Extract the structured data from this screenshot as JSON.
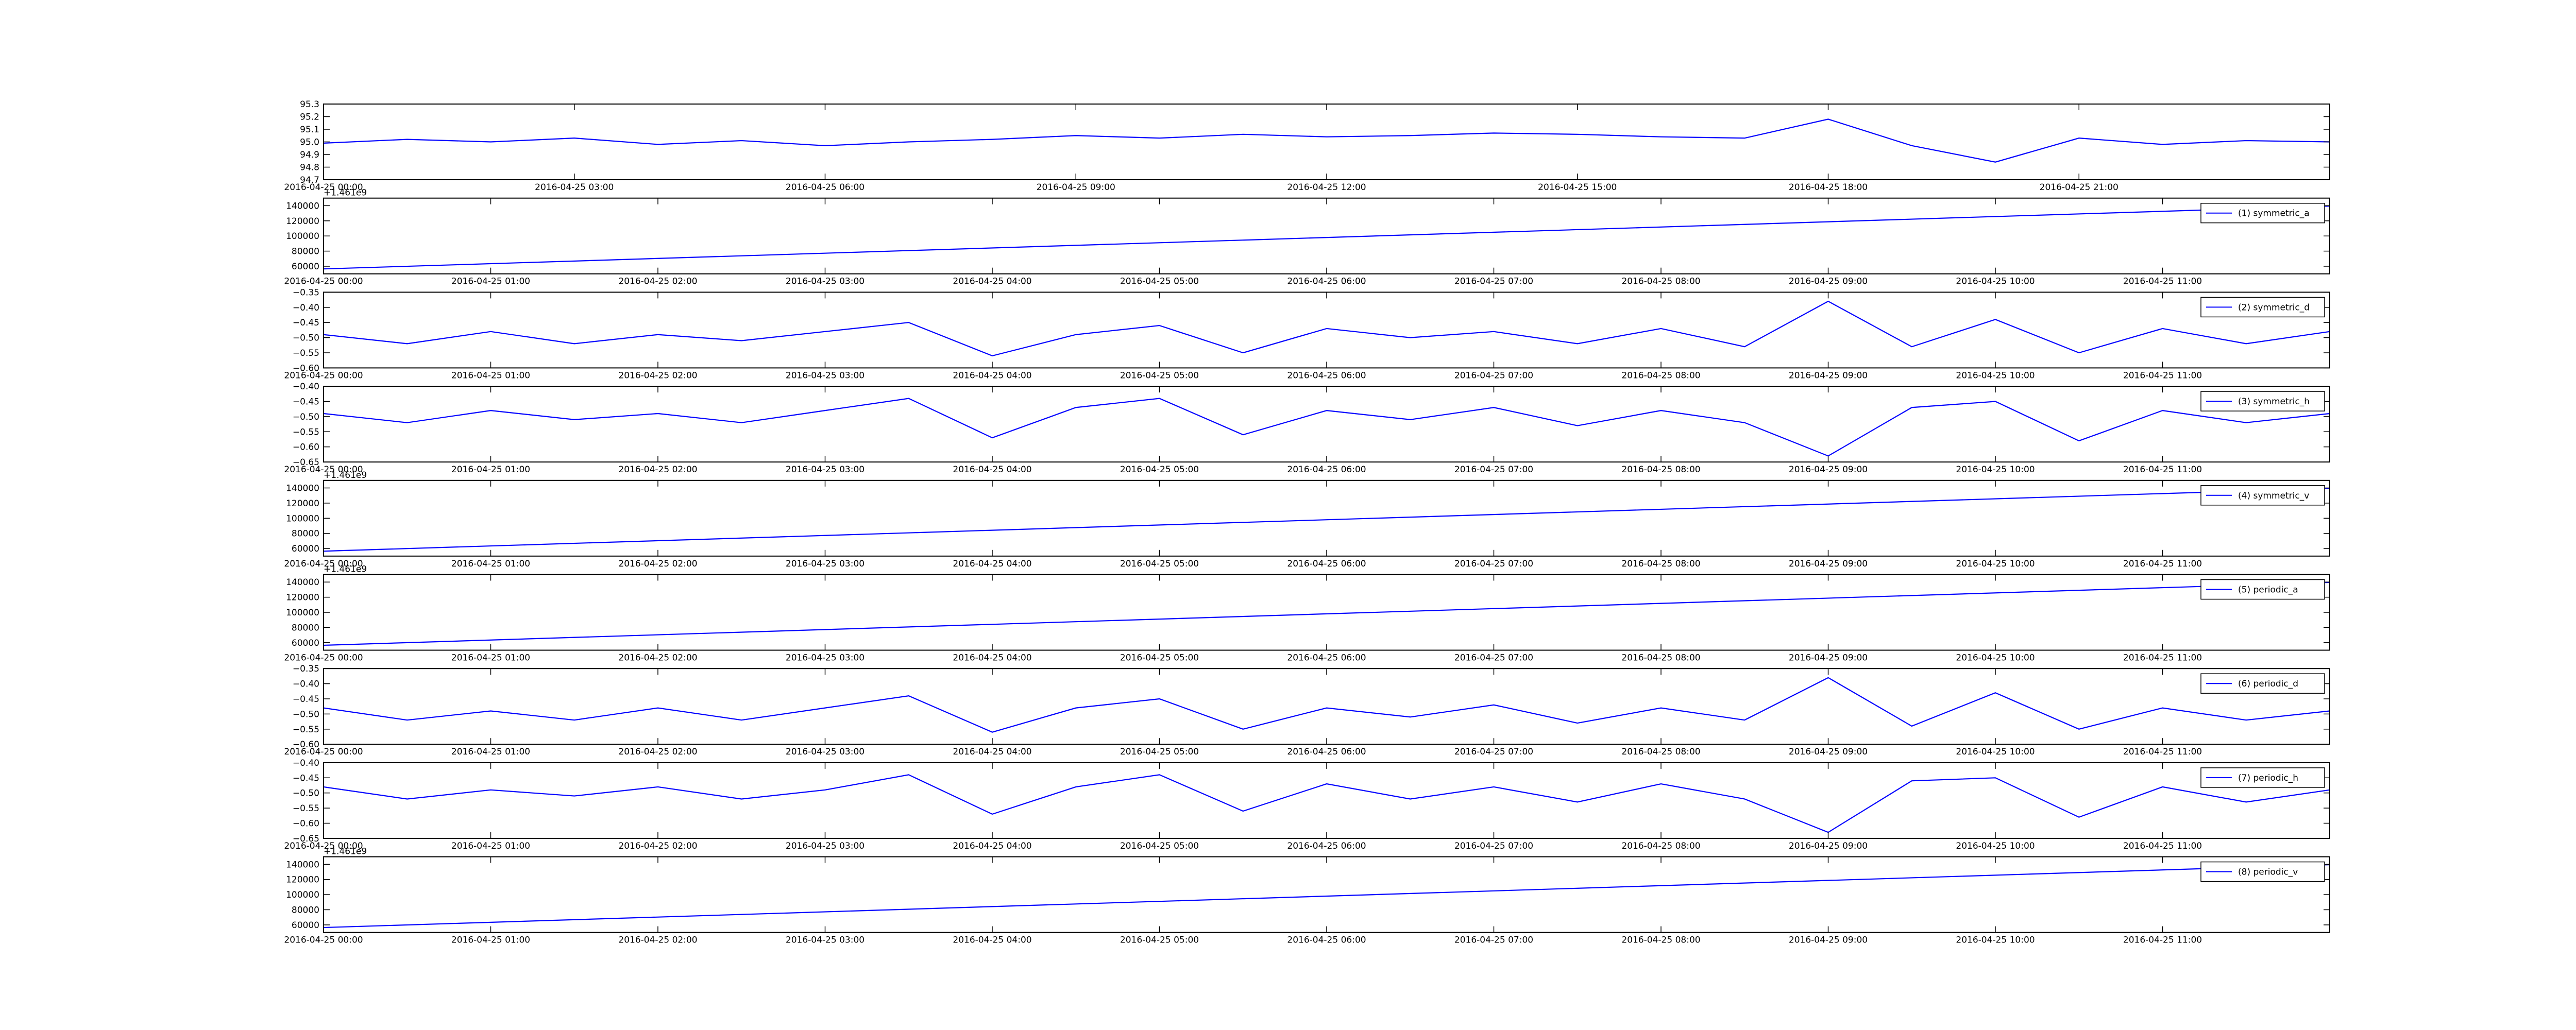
{
  "chart_data": [
    {
      "type": "line",
      "x": [
        "2016-04-25 00:00",
        "2016-04-25 01:00",
        "2016-04-25 02:00",
        "2016-04-25 03:00",
        "2016-04-25 04:00",
        "2016-04-25 05:00",
        "2016-04-25 06:00",
        "2016-04-25 07:00",
        "2016-04-25 08:00",
        "2016-04-25 09:00",
        "2016-04-25 10:00",
        "2016-04-25 11:00",
        "2016-04-25 12:00",
        "2016-04-25 13:00",
        "2016-04-25 14:00",
        "2016-04-25 15:00",
        "2016-04-25 16:00",
        "2016-04-25 17:00",
        "2016-04-25 18:00",
        "2016-04-25 19:00",
        "2016-04-25 20:00",
        "2016-04-25 21:00",
        "2016-04-25 22:00",
        "2016-04-25 23:00",
        "2016-04-26 00:00"
      ],
      "series": [
        {
          "color": "#0000ff",
          "values": [
            94.99,
            95.02,
            95.0,
            95.03,
            94.98,
            95.01,
            94.97,
            95.0,
            95.02,
            95.05,
            95.03,
            95.06,
            95.04,
            95.05,
            95.07,
            95.06,
            95.04,
            95.03,
            95.18,
            94.97,
            94.84,
            95.03,
            94.98,
            95.01,
            95.0
          ]
        }
      ],
      "xlim": [
        "2016-04-25 00:00",
        "2016-04-26 00:00"
      ],
      "xticks": [
        "2016-04-25 00:00",
        "2016-04-25 03:00",
        "2016-04-25 06:00",
        "2016-04-25 09:00",
        "2016-04-25 12:00",
        "2016-04-25 15:00",
        "2016-04-25 18:00",
        "2016-04-25 21:00"
      ],
      "ylim": [
        94.7,
        95.3
      ],
      "yticks": [
        94.7,
        94.8,
        94.9,
        {
          "value": 95.0,
          "label": "95.0"
        },
        95.1,
        95.2,
        95.3
      ]
    },
    {
      "type": "line",
      "offset_text": "+1.461e9",
      "x": [
        "2016-04-25 00:00",
        "2016-04-25 12:00"
      ],
      "series": [
        {
          "name": "(1) symmetric_a",
          "color": "#0000ff",
          "values": [
            56500,
            139500
          ]
        }
      ],
      "xlim": [
        "2016-04-25 00:00",
        "2016-04-25 12:00"
      ],
      "xticks": [
        "2016-04-25 00:00",
        "2016-04-25 01:00",
        "2016-04-25 02:00",
        "2016-04-25 03:00",
        "2016-04-25 04:00",
        "2016-04-25 05:00",
        "2016-04-25 06:00",
        "2016-04-25 07:00",
        "2016-04-25 08:00",
        "2016-04-25 09:00",
        "2016-04-25 10:00",
        "2016-04-25 11:00"
      ],
      "ylim": [
        50000,
        150000
      ],
      "yticks": [
        60000,
        80000,
        100000,
        120000,
        140000
      ]
    },
    {
      "type": "line",
      "x": [
        "2016-04-25 00:00",
        "2016-04-25 00:30",
        "2016-04-25 01:00",
        "2016-04-25 01:30",
        "2016-04-25 02:00",
        "2016-04-25 02:30",
        "2016-04-25 03:00",
        "2016-04-25 03:30",
        "2016-04-25 04:00",
        "2016-04-25 04:30",
        "2016-04-25 05:00",
        "2016-04-25 05:30",
        "2016-04-25 06:00",
        "2016-04-25 06:30",
        "2016-04-25 07:00",
        "2016-04-25 07:30",
        "2016-04-25 08:00",
        "2016-04-25 08:30",
        "2016-04-25 09:00",
        "2016-04-25 09:30",
        "2016-04-25 10:00",
        "2016-04-25 10:30",
        "2016-04-25 11:00",
        "2016-04-25 11:30",
        "2016-04-25 12:00"
      ],
      "series": [
        {
          "name": "(2) symmetric_d",
          "color": "#0000ff",
          "values": [
            -0.49,
            -0.52,
            -0.48,
            -0.52,
            -0.49,
            -0.51,
            -0.48,
            -0.45,
            -0.56,
            -0.49,
            -0.46,
            -0.55,
            -0.47,
            -0.5,
            -0.48,
            -0.52,
            -0.47,
            -0.53,
            -0.38,
            -0.53,
            -0.44,
            -0.55,
            -0.47,
            -0.52,
            -0.48
          ]
        }
      ],
      "xlim": [
        "2016-04-25 00:00",
        "2016-04-25 12:00"
      ],
      "xticks": [
        "2016-04-25 00:00",
        "2016-04-25 01:00",
        "2016-04-25 02:00",
        "2016-04-25 03:00",
        "2016-04-25 04:00",
        "2016-04-25 05:00",
        "2016-04-25 06:00",
        "2016-04-25 07:00",
        "2016-04-25 08:00",
        "2016-04-25 09:00",
        "2016-04-25 10:00",
        "2016-04-25 11:00"
      ],
      "ylim": [
        -0.6,
        -0.35
      ],
      "yticks": [
        {
          "value": -0.6,
          "label": "−0.60"
        },
        {
          "value": -0.55,
          "label": "−0.55"
        },
        {
          "value": -0.5,
          "label": "−0.50"
        },
        {
          "value": -0.45,
          "label": "−0.45"
        },
        {
          "value": -0.4,
          "label": "−0.40"
        },
        {
          "value": -0.35,
          "label": "−0.35"
        }
      ]
    },
    {
      "type": "line",
      "x": [
        "2016-04-25 00:00",
        "2016-04-25 00:30",
        "2016-04-25 01:00",
        "2016-04-25 01:30",
        "2016-04-25 02:00",
        "2016-04-25 02:30",
        "2016-04-25 03:00",
        "2016-04-25 03:30",
        "2016-04-25 04:00",
        "2016-04-25 04:30",
        "2016-04-25 05:00",
        "2016-04-25 05:30",
        "2016-04-25 06:00",
        "2016-04-25 06:30",
        "2016-04-25 07:00",
        "2016-04-25 07:30",
        "2016-04-25 08:00",
        "2016-04-25 08:30",
        "2016-04-25 09:00",
        "2016-04-25 09:30",
        "2016-04-25 10:00",
        "2016-04-25 10:30",
        "2016-04-25 11:00",
        "2016-04-25 11:30",
        "2016-04-25 12:00"
      ],
      "series": [
        {
          "name": "(3) symmetric_h",
          "color": "#0000ff",
          "values": [
            -0.49,
            -0.52,
            -0.48,
            -0.51,
            -0.49,
            -0.52,
            -0.48,
            -0.44,
            -0.57,
            -0.47,
            -0.44,
            -0.56,
            -0.48,
            -0.51,
            -0.47,
            -0.53,
            -0.48,
            -0.52,
            -0.63,
            -0.47,
            -0.45,
            -0.58,
            -0.48,
            -0.52,
            -0.49
          ]
        }
      ],
      "xlim": [
        "2016-04-25 00:00",
        "2016-04-25 12:00"
      ],
      "xticks": [
        "2016-04-25 00:00",
        "2016-04-25 01:00",
        "2016-04-25 02:00",
        "2016-04-25 03:00",
        "2016-04-25 04:00",
        "2016-04-25 05:00",
        "2016-04-25 06:00",
        "2016-04-25 07:00",
        "2016-04-25 08:00",
        "2016-04-25 09:00",
        "2016-04-25 10:00",
        "2016-04-25 11:00"
      ],
      "ylim": [
        -0.65,
        -0.4
      ],
      "yticks": [
        {
          "value": -0.65,
          "label": "−0.65"
        },
        {
          "value": -0.6,
          "label": "−0.60"
        },
        {
          "value": -0.55,
          "label": "−0.55"
        },
        {
          "value": -0.5,
          "label": "−0.50"
        },
        {
          "value": -0.45,
          "label": "−0.45"
        },
        {
          "value": -0.4,
          "label": "−0.40"
        }
      ]
    },
    {
      "type": "line",
      "offset_text": "+1.461e9",
      "x": [
        "2016-04-25 00:00",
        "2016-04-25 12:00"
      ],
      "series": [
        {
          "name": "(4) symmetric_v",
          "color": "#0000ff",
          "values": [
            56500,
            139500
          ]
        }
      ],
      "xlim": [
        "2016-04-25 00:00",
        "2016-04-25 12:00"
      ],
      "xticks": [
        "2016-04-25 00:00",
        "2016-04-25 01:00",
        "2016-04-25 02:00",
        "2016-04-25 03:00",
        "2016-04-25 04:00",
        "2016-04-25 05:00",
        "2016-04-25 06:00",
        "2016-04-25 07:00",
        "2016-04-25 08:00",
        "2016-04-25 09:00",
        "2016-04-25 10:00",
        "2016-04-25 11:00"
      ],
      "ylim": [
        50000,
        150000
      ],
      "yticks": [
        60000,
        80000,
        100000,
        120000,
        140000
      ]
    },
    {
      "type": "line",
      "offset_text": "+1.461e9",
      "x": [
        "2016-04-25 00:00",
        "2016-04-25 12:00"
      ],
      "series": [
        {
          "name": "(5) periodic_a",
          "color": "#0000ff",
          "values": [
            56500,
            139500
          ]
        }
      ],
      "xlim": [
        "2016-04-25 00:00",
        "2016-04-25 12:00"
      ],
      "xticks": [
        "2016-04-25 00:00",
        "2016-04-25 01:00",
        "2016-04-25 02:00",
        "2016-04-25 03:00",
        "2016-04-25 04:00",
        "2016-04-25 05:00",
        "2016-04-25 06:00",
        "2016-04-25 07:00",
        "2016-04-25 08:00",
        "2016-04-25 09:00",
        "2016-04-25 10:00",
        "2016-04-25 11:00"
      ],
      "ylim": [
        50000,
        150000
      ],
      "yticks": [
        60000,
        80000,
        100000,
        120000,
        140000
      ]
    },
    {
      "type": "line",
      "x": [
        "2016-04-25 00:00",
        "2016-04-25 00:30",
        "2016-04-25 01:00",
        "2016-04-25 01:30",
        "2016-04-25 02:00",
        "2016-04-25 02:30",
        "2016-04-25 03:00",
        "2016-04-25 03:30",
        "2016-04-25 04:00",
        "2016-04-25 04:30",
        "2016-04-25 05:00",
        "2016-04-25 05:30",
        "2016-04-25 06:00",
        "2016-04-25 06:30",
        "2016-04-25 07:00",
        "2016-04-25 07:30",
        "2016-04-25 08:00",
        "2016-04-25 08:30",
        "2016-04-25 09:00",
        "2016-04-25 09:30",
        "2016-04-25 10:00",
        "2016-04-25 10:30",
        "2016-04-25 11:00",
        "2016-04-25 11:30",
        "2016-04-25 12:00"
      ],
      "series": [
        {
          "name": "(6) periodic_d",
          "color": "#0000ff",
          "values": [
            -0.48,
            -0.52,
            -0.49,
            -0.52,
            -0.48,
            -0.52,
            -0.48,
            -0.44,
            -0.56,
            -0.48,
            -0.45,
            -0.55,
            -0.48,
            -0.51,
            -0.47,
            -0.53,
            -0.48,
            -0.52,
            -0.38,
            -0.54,
            -0.43,
            -0.55,
            -0.48,
            -0.52,
            -0.49
          ]
        }
      ],
      "xlim": [
        "2016-04-25 00:00",
        "2016-04-25 12:00"
      ],
      "xticks": [
        "2016-04-25 00:00",
        "2016-04-25 01:00",
        "2016-04-25 02:00",
        "2016-04-25 03:00",
        "2016-04-25 04:00",
        "2016-04-25 05:00",
        "2016-04-25 06:00",
        "2016-04-25 07:00",
        "2016-04-25 08:00",
        "2016-04-25 09:00",
        "2016-04-25 10:00",
        "2016-04-25 11:00"
      ],
      "ylim": [
        -0.6,
        -0.35
      ],
      "yticks": [
        {
          "value": -0.6,
          "label": "−0.60"
        },
        {
          "value": -0.55,
          "label": "−0.55"
        },
        {
          "value": -0.5,
          "label": "−0.50"
        },
        {
          "value": -0.45,
          "label": "−0.45"
        },
        {
          "value": -0.4,
          "label": "−0.40"
        },
        {
          "value": -0.35,
          "label": "−0.35"
        }
      ]
    },
    {
      "type": "line",
      "x": [
        "2016-04-25 00:00",
        "2016-04-25 00:30",
        "2016-04-25 01:00",
        "2016-04-25 01:30",
        "2016-04-25 02:00",
        "2016-04-25 02:30",
        "2016-04-25 03:00",
        "2016-04-25 03:30",
        "2016-04-25 04:00",
        "2016-04-25 04:30",
        "2016-04-25 05:00",
        "2016-04-25 05:30",
        "2016-04-25 06:00",
        "2016-04-25 06:30",
        "2016-04-25 07:00",
        "2016-04-25 07:30",
        "2016-04-25 08:00",
        "2016-04-25 08:30",
        "2016-04-25 09:00",
        "2016-04-25 09:30",
        "2016-04-25 10:00",
        "2016-04-25 10:30",
        "2016-04-25 11:00",
        "2016-04-25 11:30",
        "2016-04-25 12:00"
      ],
      "series": [
        {
          "name": "(7) periodic_h",
          "color": "#0000ff",
          "values": [
            -0.48,
            -0.52,
            -0.49,
            -0.51,
            -0.48,
            -0.52,
            -0.49,
            -0.44,
            -0.57,
            -0.48,
            -0.44,
            -0.56,
            -0.47,
            -0.52,
            -0.48,
            -0.53,
            -0.47,
            -0.52,
            -0.63,
            -0.46,
            -0.45,
            -0.58,
            -0.48,
            -0.53,
            -0.49
          ]
        }
      ],
      "xlim": [
        "2016-04-25 00:00",
        "2016-04-25 12:00"
      ],
      "xticks": [
        "2016-04-25 00:00",
        "2016-04-25 01:00",
        "2016-04-25 02:00",
        "2016-04-25 03:00",
        "2016-04-25 04:00",
        "2016-04-25 05:00",
        "2016-04-25 06:00",
        "2016-04-25 07:00",
        "2016-04-25 08:00",
        "2016-04-25 09:00",
        "2016-04-25 10:00",
        "2016-04-25 11:00"
      ],
      "ylim": [
        -0.65,
        -0.4
      ],
      "yticks": [
        {
          "value": -0.65,
          "label": "−0.65"
        },
        {
          "value": -0.6,
          "label": "−0.60"
        },
        {
          "value": -0.55,
          "label": "−0.55"
        },
        {
          "value": -0.5,
          "label": "−0.50"
        },
        {
          "value": -0.45,
          "label": "−0.45"
        },
        {
          "value": -0.4,
          "label": "−0.40"
        }
      ]
    },
    {
      "type": "line",
      "offset_text": "+1.461e9",
      "x": [
        "2016-04-25 00:00",
        "2016-04-25 12:00"
      ],
      "series": [
        {
          "name": "(8) periodic_v",
          "color": "#0000ff",
          "values": [
            56500,
            139500
          ]
        }
      ],
      "xlim": [
        "2016-04-25 00:00",
        "2016-04-25 12:00"
      ],
      "xticks": [
        "2016-04-25 00:00",
        "2016-04-25 01:00",
        "2016-04-25 02:00",
        "2016-04-25 03:00",
        "2016-04-25 04:00",
        "2016-04-25 05:00",
        "2016-04-25 06:00",
        "2016-04-25 07:00",
        "2016-04-25 08:00",
        "2016-04-25 09:00",
        "2016-04-25 10:00",
        "2016-04-25 11:00"
      ],
      "ylim": [
        50000,
        150000
      ],
      "yticks": [
        60000,
        80000,
        100000,
        120000,
        140000
      ]
    }
  ]
}
